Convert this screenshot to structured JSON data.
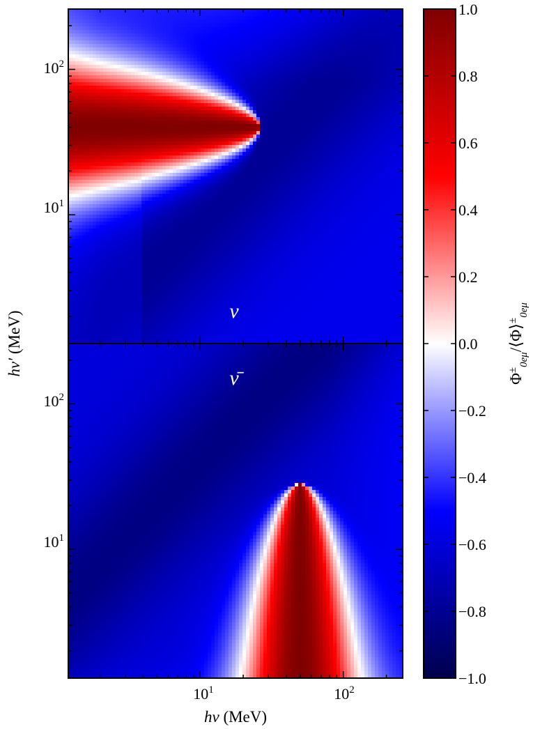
{
  "chart_data": {
    "type": "heatmap",
    "panels": [
      {
        "id": "nu",
        "label": "ν",
        "peak_energy_y_MeV": 40,
        "sign": "positive-top-left"
      },
      {
        "id": "nubar",
        "label": "ν̄",
        "peak_energy_x_MeV": 50,
        "sign": "positive-bottom-center"
      }
    ],
    "x_axis": {
      "label_sym": "hν",
      "label_unit": " (MeV)",
      "scale": "log",
      "range": [
        1.2,
        260
      ],
      "ticks": [
        {
          "value": 10,
          "base": "10",
          "exp": "1"
        },
        {
          "value": 100,
          "base": "10",
          "exp": "2"
        }
      ]
    },
    "y_axis": {
      "label_sym": "hν′",
      "label_unit": " (MeV)",
      "scale": "log",
      "range": [
        1.3,
        260
      ],
      "ticks": [
        {
          "value": 10,
          "base": "10",
          "exp": "1"
        },
        {
          "value": 100,
          "base": "10",
          "exp": "2"
        }
      ]
    },
    "colorbar": {
      "label": "Φ±0eμ/⟨Φ⟩±0eμ",
      "range": [
        -1.0,
        1.0
      ],
      "colormap": "seismic",
      "ticks": [
        "1.0",
        "0.8",
        "0.6",
        "0.4",
        "0.2",
        "0.0",
        "−0.2",
        "−0.4",
        "−0.6",
        "−0.8",
        "−1.0"
      ],
      "tick_values": [
        1.0,
        0.8,
        0.6,
        0.4,
        0.2,
        0.0,
        -0.2,
        -0.4,
        -0.6,
        -0.8,
        -1.0
      ]
    },
    "colors": {
      "min": "#00004c",
      "mid": "#ffffff",
      "max": "#800000"
    },
    "grid": false
  }
}
